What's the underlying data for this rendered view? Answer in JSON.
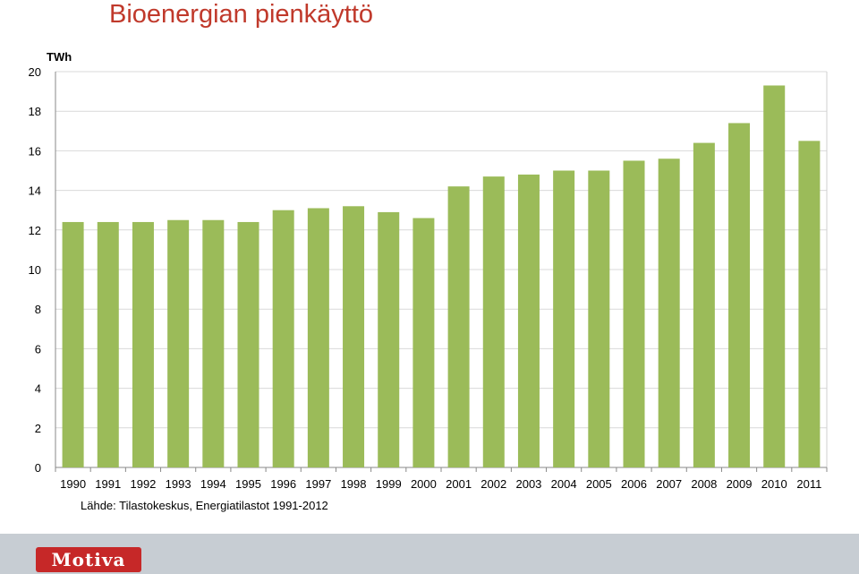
{
  "chart_data": {
    "type": "bar",
    "title": "Bioenergian pienkäyttö",
    "ylabel": "TWh",
    "source_note": "Lähde: Tilastokeskus, Energiatilastot 1991-2012",
    "categories": [
      "1990",
      "1991",
      "1992",
      "1993",
      "1994",
      "1995",
      "1996",
      "1997",
      "1998",
      "1999",
      "2000",
      "2001",
      "2002",
      "2003",
      "2004",
      "2005",
      "2006",
      "2007",
      "2008",
      "2009",
      "2010",
      "2011"
    ],
    "values": [
      12.4,
      12.4,
      12.4,
      12.5,
      12.5,
      12.4,
      13.0,
      13.1,
      13.2,
      12.9,
      12.6,
      14.2,
      14.7,
      14.8,
      15.0,
      15.0,
      15.5,
      15.6,
      16.4,
      17.4,
      19.3,
      16.5
    ],
    "ylim": [
      0,
      20
    ],
    "yticks": [
      0,
      2,
      4,
      6,
      8,
      10,
      12,
      14,
      16,
      18,
      20
    ],
    "grid": true,
    "bar_color": "#9bbb59"
  },
  "footer": {
    "logo_text": "Motiva",
    "logo_color": "#c62828"
  }
}
